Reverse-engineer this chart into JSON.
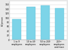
{
  "categories": [
    "1 to 9\nemployees",
    "10 to 49\nemployees",
    "50 to 249\nemployees",
    "250+\nemployees\nand more"
  ],
  "values": [
    95,
    150,
    158,
    143
  ],
  "bar_color": "#7dd4e8",
  "bar_edge_color": "#5bbdd6",
  "ylim": [
    0,
    175
  ],
  "yticks": [
    0,
    20,
    40,
    60,
    80,
    100,
    120,
    140,
    160
  ],
  "ylabel": "k€/person",
  "background_color": "#e8e8e8",
  "plot_bg_color": "#ffffff",
  "grid_color": "#cccccc",
  "tick_fontsize": 2.2,
  "ylabel_fontsize": 2.2
}
